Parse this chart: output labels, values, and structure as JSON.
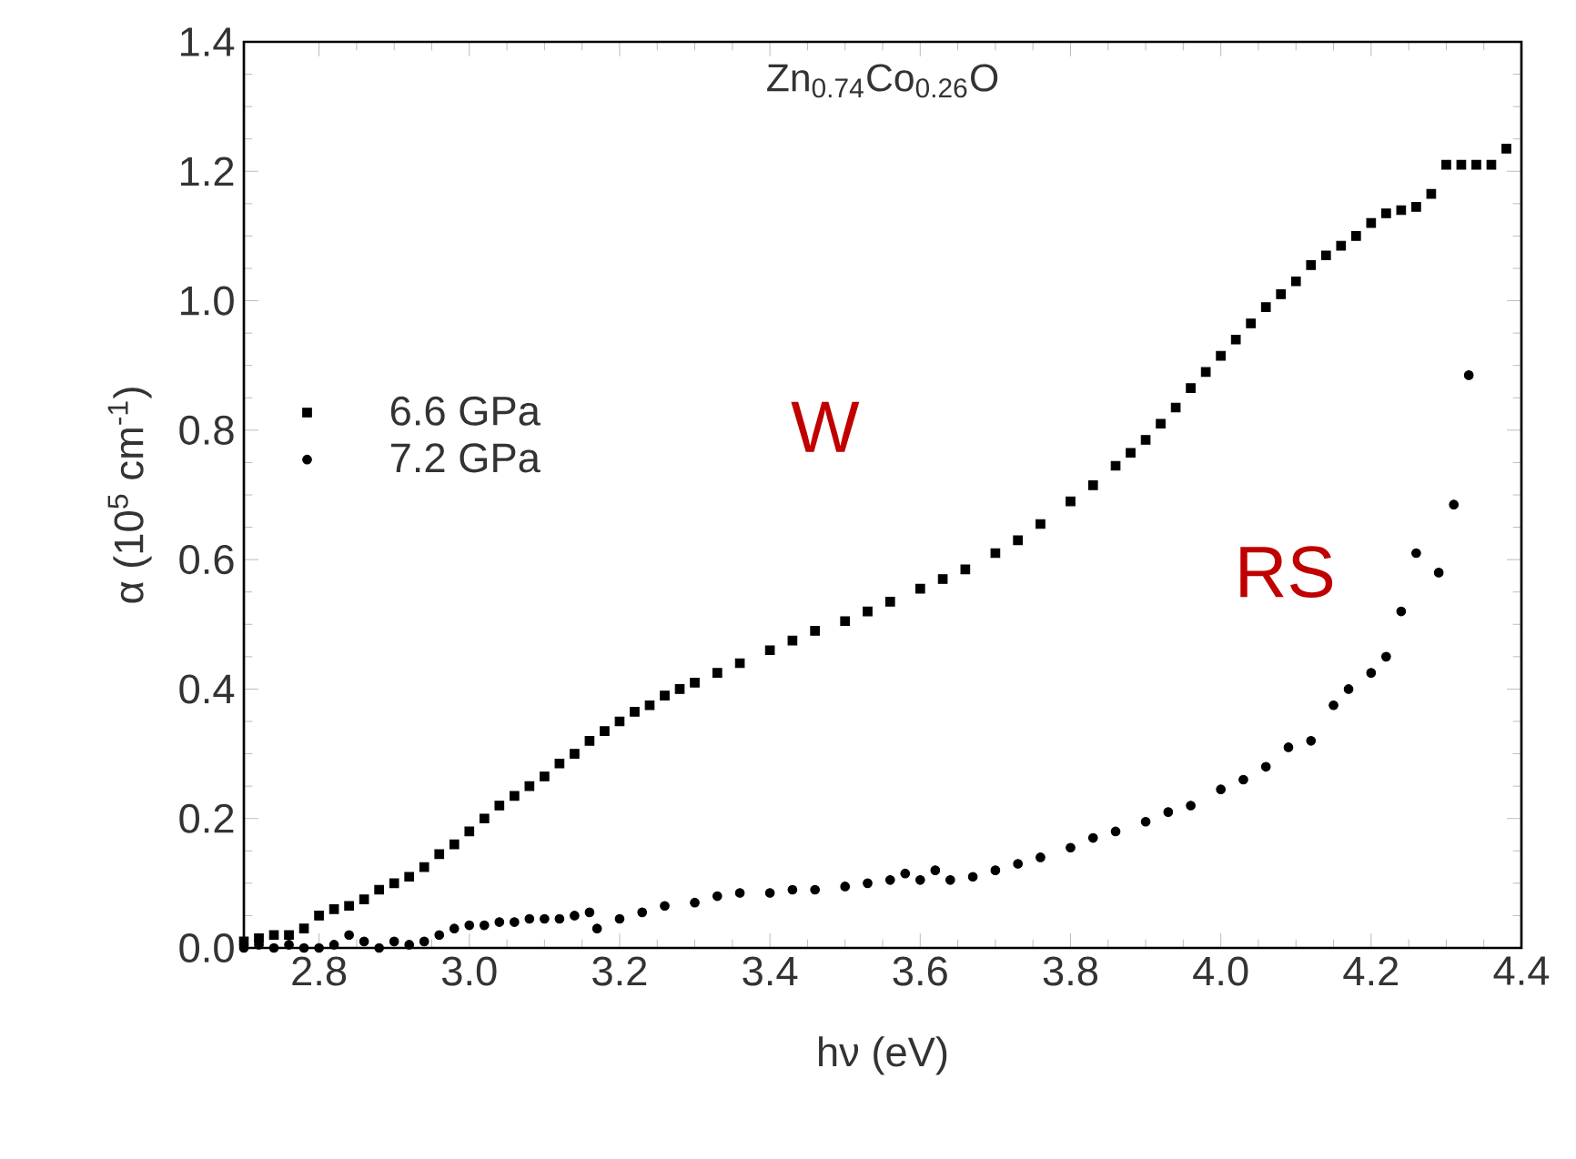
{
  "chart_data": {
    "type": "scatter",
    "title": "Zn$_{0.74}$Co$_{0.26}$O",
    "xlabel": "hν (eV)",
    "ylabel": "α (10$^{5}$ cm$^{-1}$)",
    "xlim": [
      2.7,
      4.4
    ],
    "ylim": [
      0,
      1.4
    ],
    "xticks": [
      2.8,
      {
        "value": 3,
        "label": "3.0"
      },
      3.2,
      3.4,
      3.6,
      3.8,
      {
        "value": 4,
        "label": "4.0"
      },
      4.2,
      4.4
    ],
    "yticks": [
      {
        "value": 0,
        "label": "0.0"
      },
      0.2,
      0.4,
      0.6,
      0.8,
      {
        "value": 1,
        "label": "1.0"
      },
      1.2,
      1.4
    ],
    "legend": "left",
    "grid": false,
    "annotations": [
      "W",
      "RS"
    ],
    "series": [
      {
        "name": "6.6 GPa",
        "color": "#000000",
        "marker": "square",
        "x": [
          2.7,
          2.72,
          2.74,
          2.76,
          2.78,
          2.8,
          2.82,
          2.84,
          2.86,
          2.88,
          2.9,
          2.92,
          2.94,
          2.96,
          2.98,
          3.0,
          3.02,
          3.04,
          3.06,
          3.08,
          3.1,
          3.12,
          3.14,
          3.16,
          3.18,
          3.2,
          3.22,
          3.24,
          3.26,
          3.28,
          3.3,
          3.33,
          3.36,
          3.4,
          3.43,
          3.46,
          3.5,
          3.53,
          3.56,
          3.6,
          3.63,
          3.66,
          3.7,
          3.73,
          3.76,
          3.8,
          3.83,
          3.86,
          3.88,
          3.9,
          3.92,
          3.94,
          3.96,
          3.98,
          4.0,
          4.02,
          4.04,
          4.06,
          4.08,
          4.1,
          4.12,
          4.14,
          4.16,
          4.18,
          4.2,
          4.22,
          4.24,
          4.26,
          4.28,
          4.3,
          4.32,
          4.34,
          4.36,
          4.38
        ],
        "values": [
          0.01,
          0.015,
          0.02,
          0.02,
          0.03,
          0.05,
          0.06,
          0.065,
          0.075,
          0.09,
          0.1,
          0.11,
          0.125,
          0.145,
          0.16,
          0.18,
          0.2,
          0.22,
          0.235,
          0.25,
          0.265,
          0.285,
          0.3,
          0.32,
          0.335,
          0.35,
          0.365,
          0.375,
          0.39,
          0.4,
          0.41,
          0.425,
          0.44,
          0.46,
          0.475,
          0.49,
          0.505,
          0.52,
          0.535,
          0.555,
          0.57,
          0.585,
          0.61,
          0.63,
          0.655,
          0.69,
          0.715,
          0.745,
          0.765,
          0.785,
          0.81,
          0.835,
          0.865,
          0.89,
          0.915,
          0.94,
          0.965,
          0.99,
          1.01,
          1.03,
          1.055,
          1.07,
          1.085,
          1.1,
          1.12,
          1.135,
          1.14,
          1.145,
          1.165,
          1.21,
          1.21,
          1.21,
          1.21,
          1.235
        ]
      },
      {
        "name": "7.2 GPa",
        "color": "#000000",
        "marker": "circle",
        "x": [
          2.7,
          2.72,
          2.74,
          2.76,
          2.78,
          2.8,
          2.82,
          2.84,
          2.86,
          2.88,
          2.9,
          2.92,
          2.94,
          2.96,
          2.98,
          3.0,
          3.02,
          3.04,
          3.06,
          3.08,
          3.1,
          3.12,
          3.14,
          3.16,
          3.17,
          3.2,
          3.23,
          3.26,
          3.3,
          3.33,
          3.36,
          3.4,
          3.43,
          3.46,
          3.5,
          3.53,
          3.56,
          3.58,
          3.6,
          3.62,
          3.64,
          3.67,
          3.7,
          3.73,
          3.76,
          3.8,
          3.83,
          3.86,
          3.9,
          3.93,
          3.96,
          4.0,
          4.03,
          4.06,
          4.09,
          4.12,
          4.15,
          4.17,
          4.2,
          4.22,
          4.24,
          4.26,
          4.29,
          4.31,
          4.33
        ],
        "values": [
          0.0,
          0.005,
          0.0,
          0.005,
          0.0,
          0.0,
          0.005,
          0.02,
          0.01,
          0.0,
          0.01,
          0.005,
          0.01,
          0.02,
          0.03,
          0.035,
          0.035,
          0.04,
          0.04,
          0.045,
          0.045,
          0.045,
          0.05,
          0.055,
          0.03,
          0.045,
          0.055,
          0.065,
          0.07,
          0.08,
          0.085,
          0.085,
          0.09,
          0.09,
          0.095,
          0.1,
          0.105,
          0.115,
          0.105,
          0.12,
          0.105,
          0.11,
          0.12,
          0.13,
          0.14,
          0.155,
          0.17,
          0.18,
          0.195,
          0.21,
          0.22,
          0.245,
          0.26,
          0.28,
          0.31,
          0.32,
          0.375,
          0.4,
          0.425,
          0.45,
          0.52,
          0.61,
          0.58,
          0.685,
          0.885
        ]
      }
    ]
  }
}
